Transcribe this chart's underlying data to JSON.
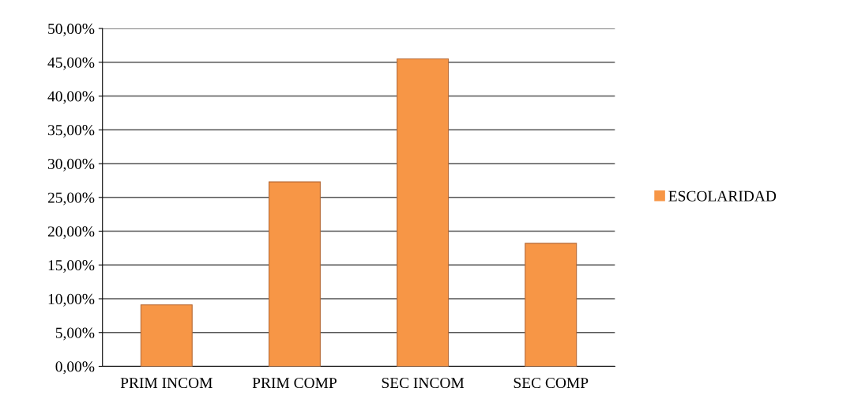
{
  "chart_data": {
    "type": "bar",
    "categories": [
      "PRIM INCOM",
      "PRIM COMP",
      "SEC INCOM",
      "SEC COMP"
    ],
    "series": [
      {
        "name": "ESCOLARIDAD",
        "color": "#f79646",
        "values": [
          9.1,
          27.3,
          45.5,
          18.2
        ]
      }
    ],
    "ylim": [
      0,
      50
    ],
    "yticks": [
      {
        "value": 0,
        "label": "0,00%"
      },
      {
        "value": 5,
        "label": "5,00%"
      },
      {
        "value": 10,
        "label": "10,00%"
      },
      {
        "value": 15,
        "label": "15,00%"
      },
      {
        "value": 20,
        "label": "20,00%"
      },
      {
        "value": 25,
        "label": "25,00%"
      },
      {
        "value": 30,
        "label": "30,00%"
      },
      {
        "value": 35,
        "label": "35,00%"
      },
      {
        "value": 40,
        "label": "40,00%"
      },
      {
        "value": 45,
        "label": "45,00%"
      },
      {
        "value": 50,
        "label": "50,00%"
      }
    ],
    "grid": "y",
    "legend": "right"
  }
}
